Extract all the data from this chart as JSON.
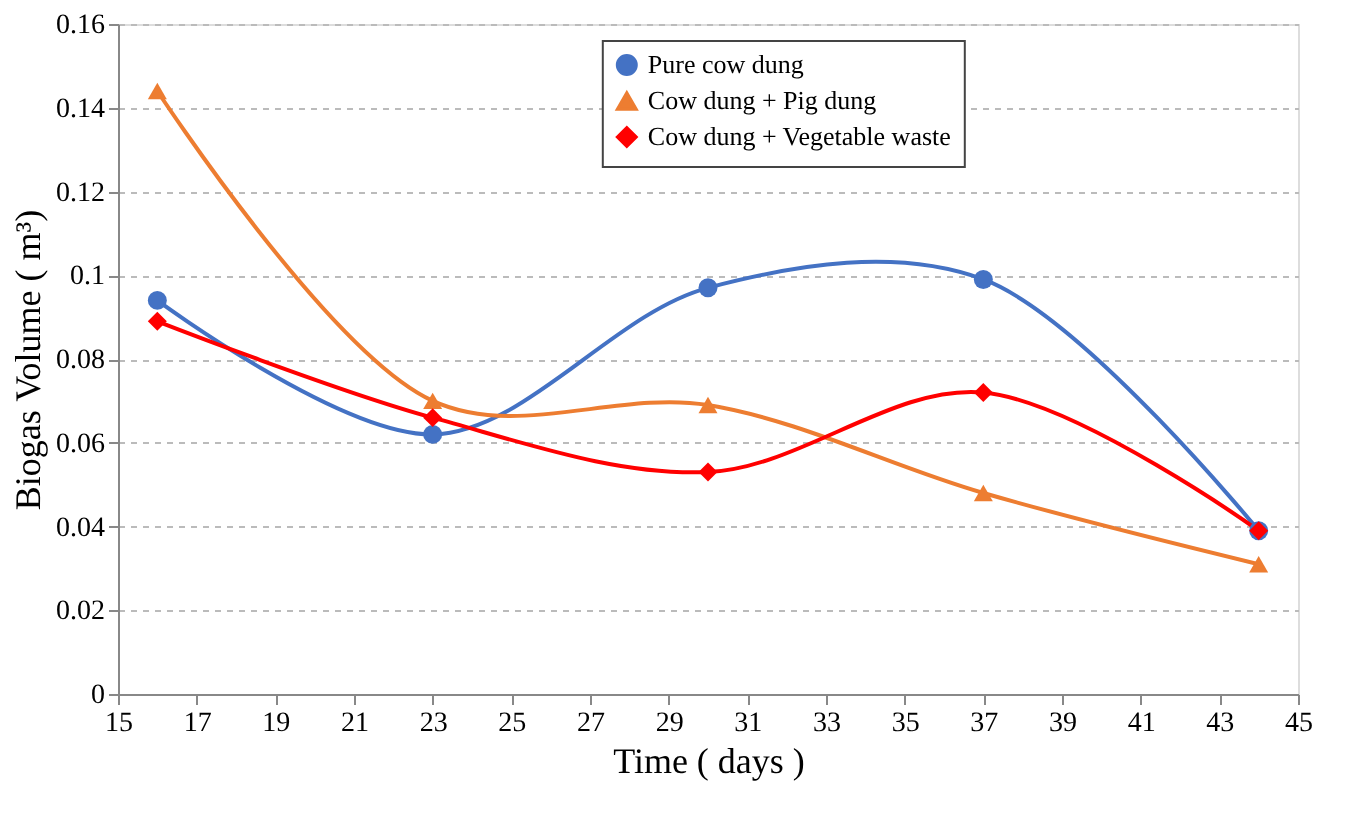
{
  "chart_data": {
    "type": "line",
    "xlabel": "Time ( days )",
    "ylabel": "Biogas Volume ( m³)",
    "x": [
      16,
      23,
      30,
      37,
      44
    ],
    "series": [
      {
        "name": "Pure cow dung",
        "color": "#4472c4",
        "marker": "circle",
        "values": [
          0.094,
          0.062,
          0.097,
          0.099,
          0.039
        ]
      },
      {
        "name": "Cow dung + Pig dung",
        "color": "#ed7d31",
        "marker": "triangle",
        "values": [
          0.144,
          0.07,
          0.069,
          0.048,
          0.031
        ]
      },
      {
        "name": "Cow dung + Vegetable waste",
        "color": "#ff0000",
        "marker": "diamond",
        "values": [
          0.089,
          0.066,
          0.053,
          0.072,
          0.039
        ]
      }
    ],
    "xlim": [
      15,
      45
    ],
    "xticks": [
      15,
      17,
      19,
      21,
      23,
      25,
      27,
      29,
      31,
      33,
      35,
      37,
      39,
      41,
      43,
      45
    ],
    "ylim": [
      0,
      0.16
    ],
    "yticks": [
      0,
      0.02,
      0.04,
      0.06,
      0.08,
      0.1,
      0.12,
      0.14,
      0.16
    ],
    "grid": "y",
    "legend": "top",
    "line_style": "solid"
  }
}
